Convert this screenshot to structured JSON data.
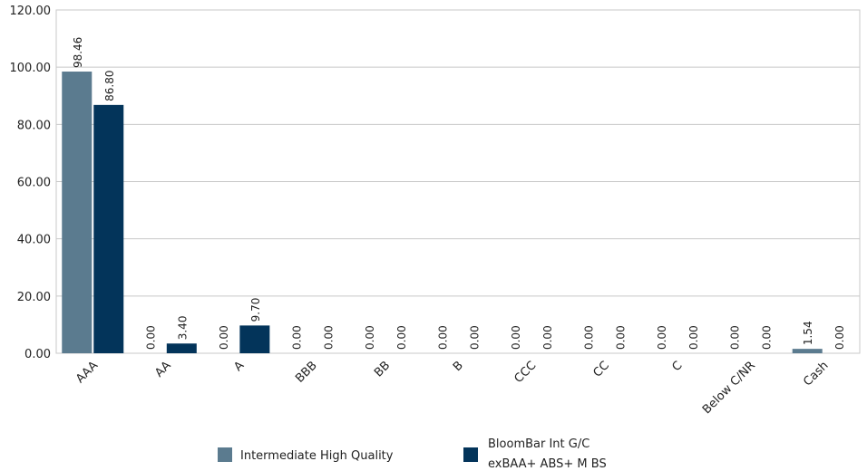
{
  "chart_data": {
    "type": "bar",
    "categories": [
      "AAA",
      "AA",
      "A",
      "BBB",
      "BB",
      "B",
      "CCC",
      "CC",
      "C",
      "Below C/NR",
      "Cash"
    ],
    "series": [
      {
        "name": "Intermediate High Quality",
        "color": "#5b7b8f",
        "values": [
          98.46,
          0.0,
          0.0,
          0.0,
          0.0,
          0.0,
          0.0,
          0.0,
          0.0,
          0.0,
          1.54
        ],
        "labels": [
          "98.46",
          "0.00",
          "0.00",
          "0.00",
          "0.00",
          "0.00",
          "0.00",
          "0.00",
          "0.00",
          "0.00",
          "1.54"
        ]
      },
      {
        "name": "BloomBar Int G/C exBAA+ABS+MBS",
        "legend_lines": [
          "BloomBar Int G/C",
          "exBAA+ ABS+ M BS"
        ],
        "color": "#03345a",
        "values": [
          86.8,
          3.4,
          9.7,
          0.0,
          0.0,
          0.0,
          0.0,
          0.0,
          0.0,
          0.0,
          0.0
        ],
        "labels": [
          "86.80",
          "3.40",
          "9.70",
          "0.00",
          "0.00",
          "0.00",
          "0.00",
          "0.00",
          "0.00",
          "0.00",
          "0.00"
        ]
      }
    ],
    "y_ticks": [
      "0.00",
      "20.00",
      "40.00",
      "60.00",
      "80.00",
      "100.00",
      "120.00"
    ],
    "ylim": [
      0,
      120
    ],
    "grid": true,
    "legend_position": "bottom-center"
  }
}
